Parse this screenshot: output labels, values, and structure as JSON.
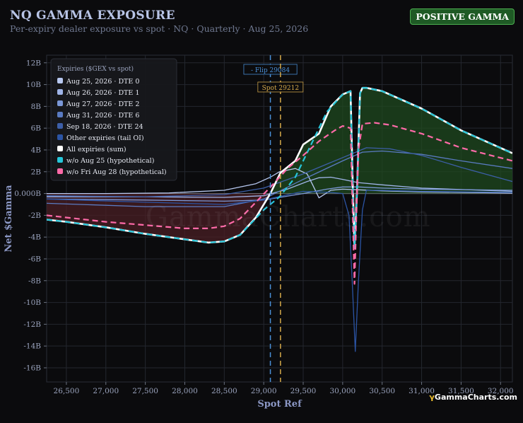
{
  "header": {
    "title": "NQ GAMMA EXPOSURE",
    "subtitle": "Per-expiry dealer exposure vs spot · NQ · Quarterly · Aug 25, 2026",
    "badge": "POSITIVE GAMMA"
  },
  "watermark": "GammaCharts.com",
  "brand": {
    "mark": "γ",
    "text": "GammaCharts.com"
  },
  "colors": {
    "badge_bg": "#1f5a25",
    "positive_fill": "#1f4a1f",
    "negative_fill": "#4a1f24",
    "flip": "#4a90d9",
    "spot": "#d4a84a"
  },
  "chart_data": {
    "type": "line",
    "xlabel": "Spot Ref",
    "ylabel": "Net $Gamma",
    "xlim": [
      26250,
      32150
    ],
    "ylim": [
      -17.3,
      12.7
    ],
    "x_ticks": [
      26500,
      27000,
      27500,
      28000,
      28500,
      29000,
      29500,
      30000,
      30500,
      31000,
      31500,
      32000
    ],
    "x_tick_labels": [
      "26,500",
      "27,000",
      "27,500",
      "28,000",
      "28,500",
      "29,000",
      "29,500",
      "30,000",
      "30,500",
      "31,000",
      "31,500",
      "32,000"
    ],
    "y_ticks": [
      12,
      10,
      8,
      6,
      4,
      2,
      0,
      -2,
      -4,
      -6,
      -8,
      -10,
      -12,
      -14,
      -16
    ],
    "y_tick_labels": [
      "12B",
      "10B",
      "8B",
      "6B",
      "4B",
      "2B",
      "0.000B",
      "-2B",
      "-4B",
      "-6B",
      "-8B",
      "-10B",
      "-12B",
      "-14B",
      "-16B"
    ],
    "grid": true,
    "legend_position": "top-left",
    "legend_title": "Expiries ($GEX vs spot)",
    "annotations": [
      {
        "label": "- Flip 29084",
        "x": 29084,
        "color": "#4a90d9"
      },
      {
        "label": "Spot 29212",
        "x": 29212,
        "color": "#d4a84a"
      }
    ],
    "series": [
      {
        "name": "Aug 25, 2026 · DTE 0",
        "color": "#b7c8f0",
        "style": "solid",
        "x": [
          26250,
          27000,
          27800,
          28500,
          28900,
          29084,
          29200,
          29400,
          29550,
          29620,
          29700,
          29850,
          30000,
          30500,
          31000,
          31500,
          32150
        ],
        "y": [
          0.0,
          0.0,
          0.05,
          0.3,
          0.9,
          1.5,
          2.0,
          2.3,
          1.8,
          0.8,
          -0.4,
          0.3,
          0.4,
          0.25,
          0.15,
          0.1,
          0.05
        ]
      },
      {
        "name": "Aug 26, 2026 · DTE 1",
        "color": "#9fb4e8",
        "style": "solid",
        "x": [
          26250,
          27500,
          28500,
          29000,
          29300,
          29550,
          29700,
          29850,
          30000,
          30200,
          30500,
          31000,
          32150
        ],
        "y": [
          -0.3,
          -0.3,
          -0.35,
          -0.2,
          0.4,
          1.1,
          1.45,
          1.5,
          1.3,
          1.0,
          0.8,
          0.5,
          0.2
        ]
      },
      {
        "name": "Aug 27, 2026 · DTE 2",
        "color": "#7b98d8",
        "style": "solid",
        "x": [
          26250,
          27500,
          28500,
          29000,
          29500,
          29800,
          30000,
          30200,
          30500,
          31000,
          32150
        ],
        "y": [
          -0.5,
          -0.6,
          -0.7,
          -0.6,
          0.0,
          0.4,
          0.6,
          0.6,
          0.5,
          0.4,
          0.3
        ]
      },
      {
        "name": "Aug 31, 2026 · DTE 6",
        "color": "#5a7bc2",
        "style": "solid",
        "x": [
          26250,
          27500,
          28500,
          29000,
          29500,
          30000,
          30250,
          30500,
          31000,
          31500,
          32150
        ],
        "y": [
          -0.9,
          -1.2,
          -1.2,
          -0.5,
          1.3,
          3.0,
          3.8,
          3.9,
          3.6,
          3.0,
          2.3
        ]
      },
      {
        "name": "Sep 18, 2026 · DTE 24",
        "color": "#3d5fa8",
        "style": "solid",
        "x": [
          26250,
          27500,
          28500,
          29000,
          29500,
          29800,
          30000,
          30300,
          30600,
          31000,
          31500,
          32150
        ],
        "y": [
          -0.2,
          -0.3,
          -0.1,
          0.5,
          1.8,
          2.7,
          3.3,
          4.2,
          4.1,
          3.5,
          2.4,
          1.1
        ]
      },
      {
        "name": "Other expiries (tail OI)",
        "color": "#2b54a4",
        "style": "solid",
        "x": [
          26250,
          27500,
          28500,
          29000,
          29500,
          29850,
          30000,
          30080,
          30120,
          30160,
          30200,
          30250,
          30300,
          30500,
          31000,
          32150
        ],
        "y": [
          -0.5,
          -0.8,
          -1.0,
          -0.6,
          0.2,
          0.1,
          0.0,
          -2.0,
          -8.0,
          -14.5,
          -8.0,
          -1.5,
          0.3,
          0.3,
          0.2,
          0.1
        ]
      },
      {
        "name": "All expiries (sum)",
        "color": "#ffffff",
        "style": "solid",
        "x": [
          26250,
          26500,
          27000,
          27500,
          28000,
          28300,
          28500,
          28700,
          28900,
          29084,
          29212,
          29400,
          29500,
          29700,
          29850,
          30000,
          30100,
          30130,
          30150,
          30180,
          30220,
          30250,
          30300,
          30500,
          31000,
          31500,
          32150
        ],
        "y": [
          -2.4,
          -2.6,
          -3.1,
          -3.7,
          -4.2,
          -4.5,
          -4.4,
          -3.8,
          -2.2,
          0.0,
          1.9,
          3.0,
          4.5,
          5.5,
          8.0,
          9.1,
          9.4,
          0.0,
          -5.0,
          0.0,
          9.2,
          9.7,
          9.7,
          9.4,
          7.8,
          5.8,
          3.7
        ]
      },
      {
        "name": "w/o Aug 25 (hypothetical)",
        "color": "#26c6da",
        "style": "dashed",
        "x": [
          26250,
          26500,
          27000,
          27500,
          28000,
          28300,
          28500,
          28700,
          29000,
          29200,
          29400,
          29600,
          29800,
          30000,
          30100,
          30130,
          30150,
          30180,
          30220,
          30250,
          30300,
          30500,
          31000,
          31500,
          32150
        ],
        "y": [
          -2.4,
          -2.6,
          -3.1,
          -3.7,
          -4.2,
          -4.5,
          -4.4,
          -3.8,
          -1.5,
          -0.3,
          1.5,
          4.5,
          7.5,
          9.1,
          9.4,
          0.0,
          -5.0,
          0.0,
          9.2,
          9.7,
          9.7,
          9.4,
          7.8,
          5.8,
          3.7
        ]
      },
      {
        "name": "w/o Fri Aug 28 (hypothetical)",
        "color": "#ff6aa8",
        "style": "dashed",
        "x": [
          26250,
          26500,
          27000,
          27500,
          28000,
          28300,
          28500,
          28700,
          28900,
          29100,
          29300,
          29500,
          29700,
          29900,
          30000,
          30100,
          30150,
          30170,
          30200,
          30250,
          30400,
          30600,
          31000,
          31500,
          32150
        ],
        "y": [
          -2.0,
          -2.2,
          -2.6,
          -2.9,
          -3.2,
          -3.2,
          -3.0,
          -2.3,
          -0.8,
          0.7,
          2.3,
          3.5,
          4.8,
          5.8,
          6.2,
          6.0,
          -8.3,
          -3.0,
          4.0,
          6.4,
          6.5,
          6.3,
          5.5,
          4.2,
          3.0
        ]
      }
    ]
  }
}
